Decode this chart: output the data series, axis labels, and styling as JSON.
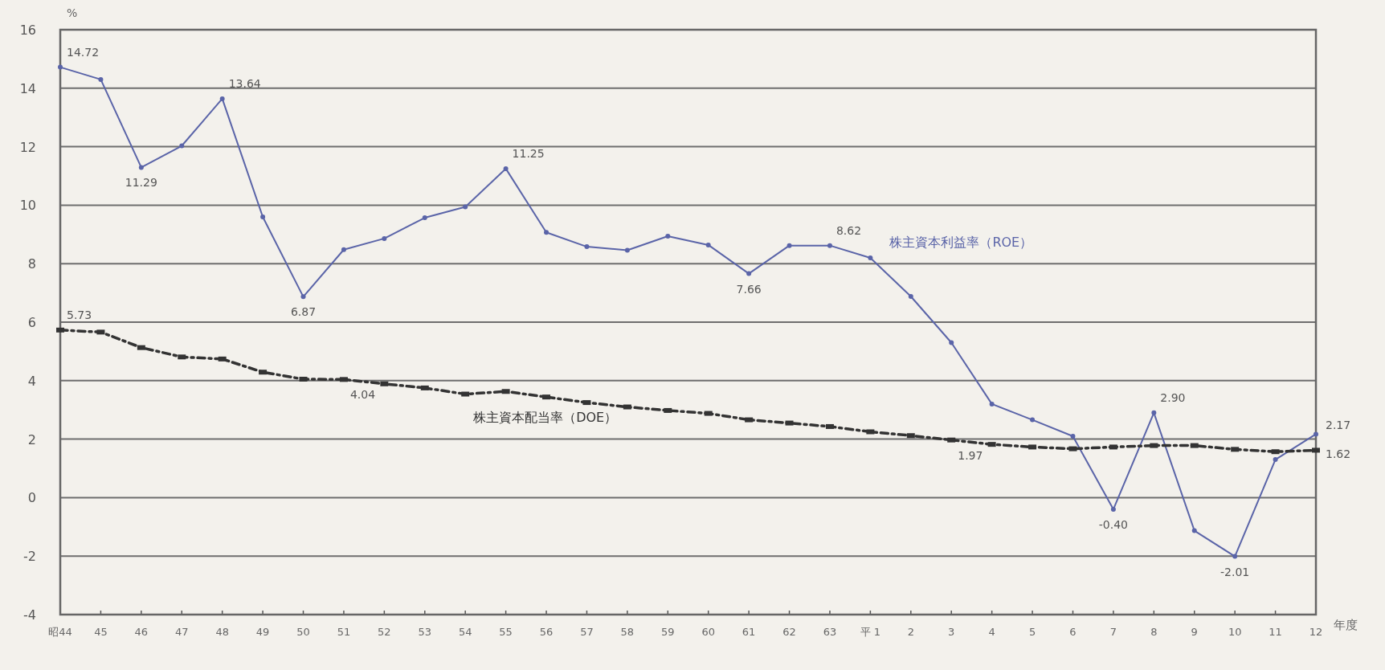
{
  "chart_data": {
    "type": "line",
    "categories": [
      "昭44",
      "45",
      "46",
      "47",
      "48",
      "49",
      "50",
      "51",
      "52",
      "53",
      "54",
      "55",
      "56",
      "57",
      "58",
      "59",
      "60",
      "61",
      "62",
      "63",
      "平 1",
      "2",
      "3",
      "4",
      "5",
      "6",
      "7",
      "8",
      "9",
      "10",
      "11",
      "12"
    ],
    "ylabel": "%",
    "xlabel": "年度",
    "ylim": [
      -4,
      16
    ],
    "yticks": [
      -4,
      -2,
      0,
      2,
      4,
      6,
      8,
      10,
      12,
      14,
      16
    ],
    "grid": "y",
    "series": [
      {
        "name": "株主資本利益率（ROE）",
        "color": "#5a64a8",
        "marker": "circle",
        "line_style": "solid",
        "values": [
          14.72,
          14.3,
          11.29,
          12.03,
          13.64,
          9.6,
          6.87,
          8.48,
          8.86,
          9.57,
          9.94,
          11.25,
          9.07,
          8.58,
          8.46,
          8.94,
          8.64,
          7.66,
          8.62,
          8.62,
          8.2,
          6.88,
          5.3,
          3.2,
          2.66,
          2.1,
          -0.4,
          2.9,
          -1.13,
          -2.01,
          1.3,
          2.17
        ],
        "value_labels": [
          "14.72",
          null,
          "11.29",
          null,
          "13.64",
          null,
          "6.87",
          null,
          null,
          null,
          null,
          "11.25",
          null,
          null,
          null,
          null,
          null,
          "7.66",
          null,
          "8.62",
          null,
          null,
          null,
          null,
          null,
          null,
          "-0.40",
          "2.90",
          null,
          "-2.01",
          null,
          "2.17"
        ]
      },
      {
        "name": "株主資本配当率（DOE）",
        "color": "#333333",
        "marker": "square",
        "line_style": "dashed",
        "values": [
          5.73,
          5.66,
          5.13,
          4.81,
          4.74,
          4.29,
          4.05,
          4.04,
          3.89,
          3.75,
          3.54,
          3.63,
          3.44,
          3.25,
          3.1,
          2.98,
          2.88,
          2.66,
          2.55,
          2.43,
          2.25,
          2.12,
          1.97,
          1.82,
          1.73,
          1.67,
          1.73,
          1.78,
          1.78,
          1.65,
          1.57,
          1.62
        ],
        "value_labels": [
          "5.73",
          null,
          null,
          null,
          null,
          null,
          null,
          "4.04",
          null,
          null,
          null,
          null,
          null,
          null,
          null,
          null,
          null,
          null,
          null,
          null,
          null,
          null,
          "1.97",
          null,
          null,
          null,
          null,
          null,
          null,
          null,
          null,
          "1.62"
        ]
      }
    ]
  }
}
